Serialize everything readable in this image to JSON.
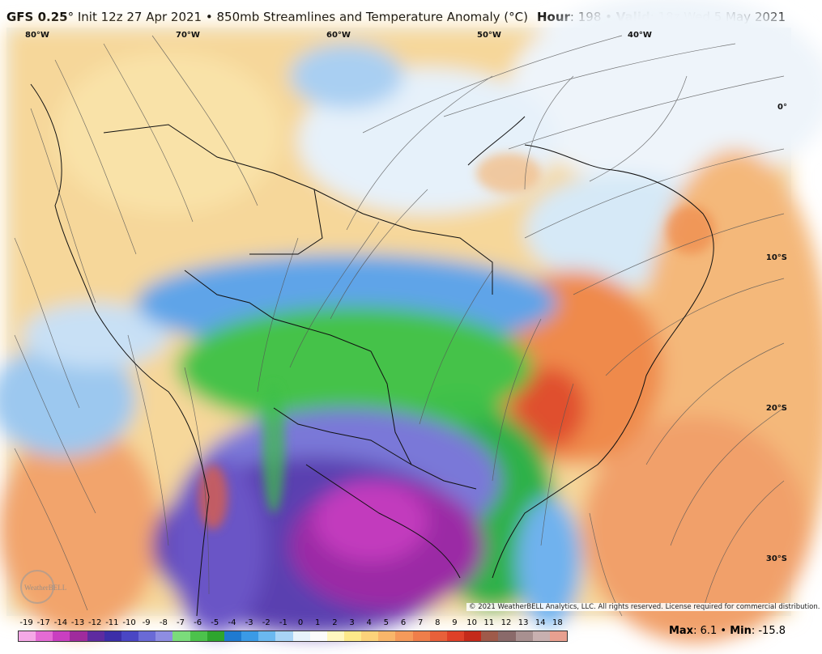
{
  "header": {
    "model": "GFS 0.25",
    "degree": "°",
    "init": " Init 12z 27 Apr 2021",
    "bullet": " • ",
    "product": "850mb Streamlines and Temperature Anomaly (°C)",
    "hour_label": "Hour",
    "hour_value": ": 198",
    "valid_label": "Valid",
    "valid_value": ": 18z Wed 5 May 2021"
  },
  "map": {
    "longitude_labels": [
      "80°W",
      "70°W",
      "60°W",
      "50°W",
      "40°W"
    ],
    "latitude_labels": [
      "0°",
      "10°S",
      "20°S",
      "30°S"
    ],
    "copyright": "© 2021 WeatherBELL Analytics, LLC. All rights reserved. License required for commercial distribution.",
    "logo_text": "WeatherBELL"
  },
  "colorbar": {
    "labels": [
      "-19",
      "-17",
      "-14",
      "-13",
      "-12",
      "-11",
      "-10",
      "-9",
      "-8",
      "-7",
      "-6",
      "-5",
      "-4",
      "-3",
      "-2",
      "-1",
      "0",
      "1",
      "2",
      "3",
      "4",
      "5",
      "6",
      "7",
      "8",
      "9",
      "10",
      "11",
      "12",
      "13",
      "14",
      "18"
    ],
    "colors": [
      "#f5a8e6",
      "#e46bd4",
      "#c93fc0",
      "#9f2b9d",
      "#5e2ba0",
      "#3c2ea8",
      "#4a46c4",
      "#6a6ad6",
      "#8e8de2",
      "#7bdc7b",
      "#4cc24c",
      "#2ea52e",
      "#1f7ad0",
      "#3a9ae6",
      "#6ab8f0",
      "#a8d4f6",
      "#e8f3fb",
      "#fbfbfb",
      "#fff7c0",
      "#fde98a",
      "#fcd27a",
      "#f9b66a",
      "#f59a5a",
      "#ef7e4a",
      "#e8603a",
      "#de4028",
      "#c42a1a",
      "#9f5a4a",
      "#8a6a6a",
      "#a89090",
      "#c8b0b0",
      "#e8a090"
    ]
  },
  "stats": {
    "max_label": "Max",
    "max_value": ": 6.1",
    "min_label": "Min",
    "min_value": ": -15.8",
    "separator": " • "
  }
}
